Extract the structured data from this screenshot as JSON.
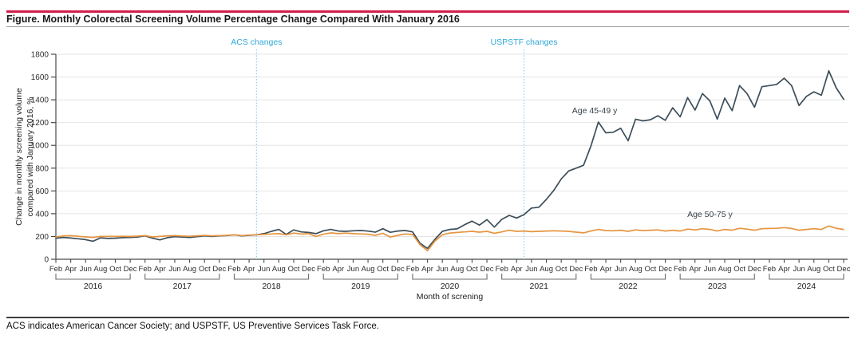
{
  "header": {
    "title": "Figure. Monthly Colorectal Screening Volume Percentage Change Compared With January 2016"
  },
  "footnote": {
    "text": "ACS indicates American Cancer Society; and USPSTF, US Preventive Services Task Force."
  },
  "colors": {
    "accent_rule": "#d21e4e",
    "title_text": "#1a1a1a",
    "grid": "#e4e4e4",
    "axis": "#4a4a4a",
    "tick_text": "#2e2e2e",
    "bracket": "#6b6b6b",
    "reference_line": "#8fd4ec",
    "reference_text": "#2fa8d8",
    "series_45_49": "#3d4e59",
    "series_50_75": "#e6953f"
  },
  "chart_data": {
    "type": "line",
    "title": "Figure. Monthly Colorectal Screening Volume Percentage Change Compared With January 2016",
    "xlabel": "Month of screning",
    "ylabel_lines": [
      "Change in monthly screening volume",
      "compared with January 2016, %"
    ],
    "ylim": [
      0,
      1800
    ],
    "ytick_step": 200,
    "grid": true,
    "legend": "inline-labels",
    "x_start_month": "2016-02",
    "x_end_month": "2024-12",
    "years": [
      2016,
      2017,
      2018,
      2019,
      2020,
      2021,
      2022,
      2023,
      2024
    ],
    "month_tick_labels": [
      "Feb",
      "Apr",
      "Jun",
      "Aug",
      "Oct",
      "Dec"
    ],
    "reference_lines": [
      {
        "label": "ACS changes",
        "month": "2018-05",
        "month_index": 27
      },
      {
        "label": "USPSTF changes",
        "month": "2021-05",
        "month_index": 63
      }
    ],
    "series": [
      {
        "name": "Age 45-49 y",
        "color": "#3d4e59",
        "label_anchor": {
          "month_index": 72.5,
          "value": 1280
        },
        "values": [
          185,
          192,
          186,
          180,
          172,
          158,
          188,
          183,
          185,
          190,
          192,
          195,
          205,
          185,
          170,
          190,
          198,
          195,
          192,
          198,
          205,
          200,
          205,
          208,
          215,
          205,
          210,
          215,
          225,
          245,
          262,
          218,
          258,
          240,
          235,
          225,
          250,
          262,
          248,
          245,
          250,
          253,
          247,
          238,
          268,
          237,
          248,
          253,
          240,
          140,
          95,
          175,
          245,
          262,
          267,
          303,
          335,
          300,
          348,
          282,
          350,
          385,
          362,
          392,
          450,
          457,
          525,
          605,
          705,
          775,
          800,
          825,
          995,
          1205,
          1110,
          1115,
          1150,
          1040,
          1230,
          1215,
          1225,
          1260,
          1220,
          1330,
          1250,
          1420,
          1310,
          1455,
          1390,
          1230,
          1415,
          1305,
          1525,
          1455,
          1335,
          1515,
          1525,
          1535,
          1590,
          1525,
          1350,
          1430,
          1470,
          1440,
          1655,
          1505,
          1405
        ]
      },
      {
        "name": "Age 50-75 y",
        "color": "#e6953f",
        "label_anchor": {
          "month_index": 88,
          "value": 372
        },
        "values": [
          195,
          205,
          207,
          202,
          196,
          192,
          200,
          201,
          200,
          202,
          200,
          203,
          208,
          196,
          200,
          206,
          208,
          204,
          202,
          206,
          210,
          205,
          208,
          210,
          215,
          208,
          212,
          215,
          218,
          222,
          225,
          215,
          230,
          222,
          225,
          200,
          220,
          232,
          225,
          230,
          225,
          222,
          220,
          210,
          228,
          195,
          210,
          222,
          218,
          128,
          75,
          160,
          215,
          230,
          235,
          240,
          245,
          238,
          245,
          228,
          240,
          255,
          245,
          248,
          242,
          245,
          248,
          250,
          248,
          245,
          238,
          232,
          248,
          262,
          252,
          250,
          255,
          245,
          258,
          252,
          255,
          258,
          248,
          255,
          248,
          265,
          258,
          268,
          262,
          248,
          262,
          255,
          272,
          265,
          255,
          268,
          270,
          272,
          278,
          270,
          255,
          262,
          268,
          262,
          292,
          272,
          262
        ]
      }
    ]
  }
}
